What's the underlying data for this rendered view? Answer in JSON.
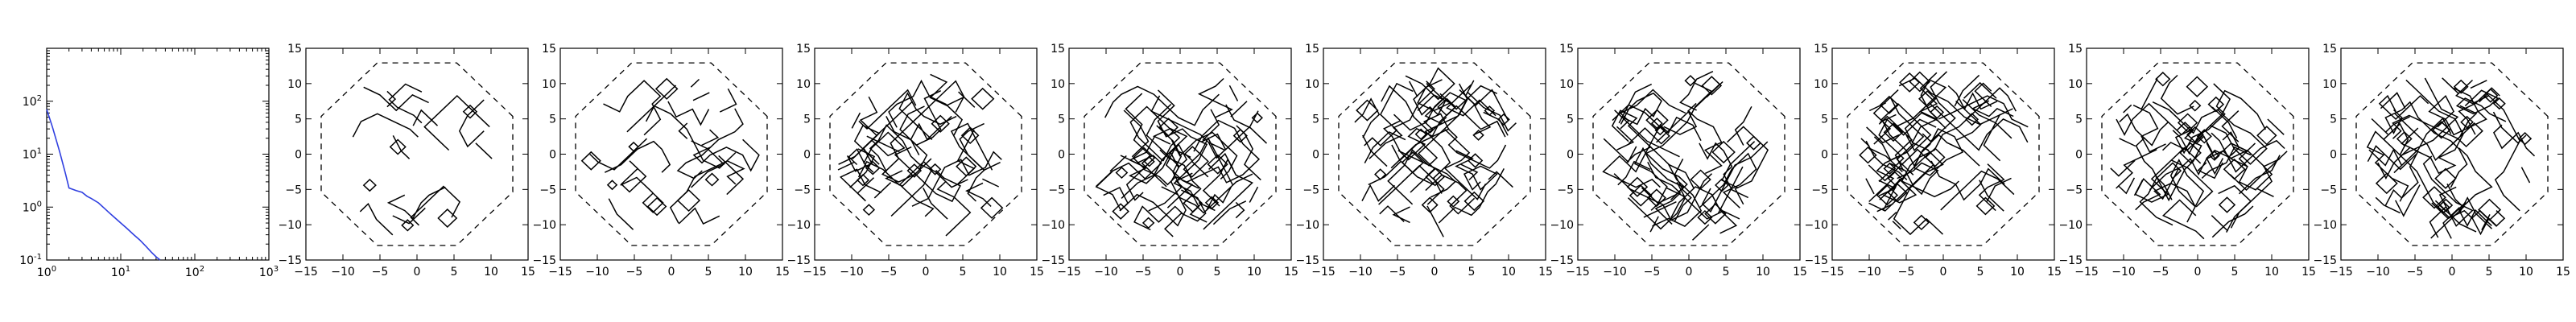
{
  "chart_data": [
    {
      "type": "line",
      "title": "",
      "xlabel": "",
      "ylabel": "",
      "xscale": "log",
      "yscale": "log",
      "xlim": [
        1,
        1000
      ],
      "ylim": [
        0.1,
        1000
      ],
      "grid": false,
      "x_tick_labels": [
        "10^0",
        "10^1",
        "10^2",
        "10^3"
      ],
      "y_tick_labels": [
        "10^-1",
        "10^0",
        "10^1",
        "10^2"
      ],
      "series": [
        {
          "color": "#2f3fe0",
          "x": [
            1,
            1.2,
            1.5,
            1.8,
            2,
            2.5,
            3,
            3.5,
            4,
            5,
            6,
            7,
            8,
            10,
            12,
            15,
            18,
            22,
            26,
            30,
            34
          ],
          "y": [
            70,
            32,
            11,
            4.2,
            2.3,
            2.05,
            1.9,
            1.6,
            1.45,
            1.2,
            0.95,
            0.78,
            0.66,
            0.5,
            0.4,
            0.3,
            0.24,
            0.18,
            0.14,
            0.115,
            0.1
          ]
        }
      ]
    },
    {
      "type": "contour",
      "panel_count": 9,
      "xlim": [
        -15,
        15
      ],
      "ylim": [
        -15,
        15
      ],
      "x_tick_labels": [
        "-15",
        "-10",
        "-5",
        "0",
        "5",
        "10",
        "15"
      ],
      "y_tick_labels": [
        "-15",
        "-10",
        "-5",
        "0",
        "5",
        "10",
        "15"
      ],
      "panels": [
        {
          "index": 1,
          "complexity": 1
        },
        {
          "index": 2,
          "complexity": 2
        },
        {
          "index": 3,
          "complexity": 3
        },
        {
          "index": 4,
          "complexity": 4
        },
        {
          "index": 5,
          "complexity": 4
        },
        {
          "index": 6,
          "complexity": 4
        },
        {
          "index": 7,
          "complexity": 5
        },
        {
          "index": 8,
          "complexity": 4
        },
        {
          "index": 9,
          "complexity": 4
        }
      ]
    }
  ]
}
